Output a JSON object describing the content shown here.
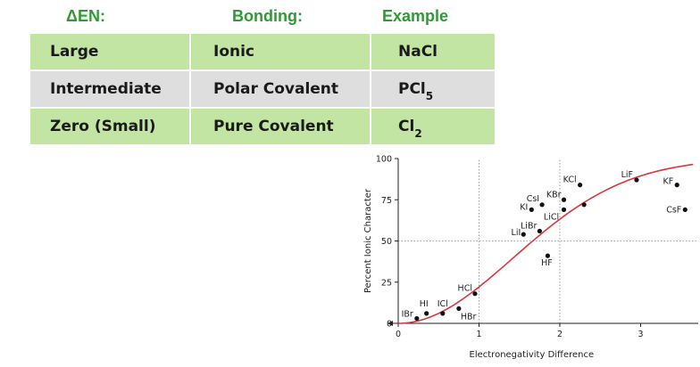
{
  "table": {
    "headers": [
      "ΔEN:",
      "Bonding:",
      "Example"
    ],
    "rows": [
      {
        "en": "Large",
        "bonding": "Ionic",
        "example": "NaCl",
        "example_sub": ""
      },
      {
        "en": "Intermediate",
        "bonding": "Polar Covalent",
        "example": "PCl",
        "example_sub": "5"
      },
      {
        "en": "Zero (Small)",
        "bonding": "Pure Covalent",
        "example": "Cl",
        "example_sub": "2"
      }
    ]
  },
  "colors": {
    "header_text": "#2e9a33",
    "row_green": "#c3e5a4",
    "row_gray": "#dedede",
    "curve": "#d9373b",
    "point": "#111111"
  },
  "chart_data": {
    "type": "scatter",
    "title": "",
    "xlabel": "Electronegativity Difference",
    "ylabel": "Percent Ionic Character",
    "xlim": [
      0,
      3.5
    ],
    "ylim": [
      0,
      100
    ],
    "x_ticks": [
      0,
      1,
      2,
      3
    ],
    "y_ticks": [
      0,
      25,
      50,
      75,
      100
    ],
    "grid": "dotted at 50% and x=1, x=2",
    "points": [
      {
        "label": "IBr",
        "x": 0.23,
        "y": 3
      },
      {
        "label": "HI",
        "x": 0.35,
        "y": 6
      },
      {
        "label": "ICl",
        "x": 0.55,
        "y": 6
      },
      {
        "label": "HBr",
        "x": 0.75,
        "y": 9
      },
      {
        "label": "HCl",
        "x": 0.95,
        "y": 18
      },
      {
        "label": "LiI",
        "x": 1.55,
        "y": 54
      },
      {
        "label": "LiBr",
        "x": 1.75,
        "y": 56
      },
      {
        "label": "HF",
        "x": 1.85,
        "y": 41
      },
      {
        "label": "KI",
        "x": 1.65,
        "y": 69
      },
      {
        "label": "CsI",
        "x": 1.78,
        "y": 72
      },
      {
        "label": "KBr",
        "x": 2.05,
        "y": 75
      },
      {
        "label": "LiCl",
        "x": 2.05,
        "y": 69
      },
      {
        "label": "KCl",
        "x": 2.25,
        "y": 84
      },
      {
        "label": "",
        "x": 2.3,
        "y": 72
      },
      {
        "label": "LiF",
        "x": 2.95,
        "y": 87
      },
      {
        "label": "KF",
        "x": 3.45,
        "y": 84
      },
      {
        "label": "CsF",
        "x": 3.55,
        "y": 69
      }
    ],
    "curve": {
      "name": "",
      "type": "sigmoid"
    }
  }
}
